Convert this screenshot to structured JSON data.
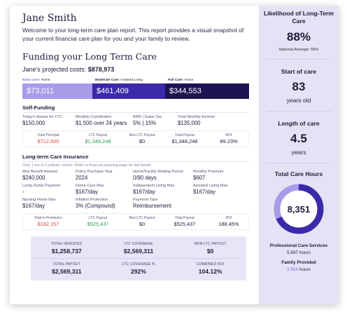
{
  "header": {
    "name": "Jane Smith",
    "welcome": "Welcome to your long-term care plan report. This report provides a visual snapshot of your current financial care plan for you and your family to review."
  },
  "funding": {
    "title": "Funding your Long Term Care",
    "projected_label": "Jane's projected costs:",
    "projected_value": "$878,973",
    "stages": [
      {
        "label": "Early Care:",
        "type": "Home",
        "value": "$73,011",
        "color": "#a89be8"
      },
      {
        "label": "Moderate Care:",
        "type": "Assisted Living",
        "value": "$461,409",
        "color": "#3a2aa8"
      },
      {
        "label": "Full Care:",
        "type": "Home",
        "value": "$344,553",
        "color": "#1b1450"
      }
    ]
  },
  "self_funding": {
    "title": "Self-Funding",
    "fields": [
      {
        "label": "Today's Assets for LTC",
        "value": "$150,000"
      },
      {
        "label": "Monthly Contribution",
        "value": "$1,500 over 24 years"
      },
      {
        "label": "ARR | Gains Tax",
        "value": "5% | 15%"
      },
      {
        "label": "Total Monthly Income",
        "value": "$135,000"
      }
    ],
    "summary": [
      {
        "label": "Total Principal",
        "value": "$712,500",
        "tone": "red"
      },
      {
        "label": "LTC Payout",
        "value": "$1,348,248",
        "tone": "green"
      },
      {
        "label": "Non-LTC Payout",
        "value": "$0",
        "tone": ""
      },
      {
        "label": "Total Payout",
        "value": "$1,348,248",
        "tone": ""
      },
      {
        "label": "ROI",
        "value": "89.23%",
        "tone": ""
      }
    ]
  },
  "insurance": {
    "title": "Long-term Care Insurance",
    "subtitle": "Only 1 out of 3 policies shown. Refer to financial planning page for full details.",
    "fields": [
      {
        "label": "Max Benefit Amount",
        "value": "$240,000"
      },
      {
        "label": "Policy Purchase Year",
        "value": "2024"
      },
      {
        "label": "Home/Facility Waiting Period",
        "value": "0/90 days"
      },
      {
        "label": "Monthly Premium",
        "value": "$607"
      },
      {
        "label": "Lump-Sump Payment",
        "value": "-"
      },
      {
        "label": "Home Care Max",
        "value": "$167/day"
      },
      {
        "label": "Independent Living Max",
        "value": "$167/day"
      },
      {
        "label": "Assisted Living Max",
        "value": "$167/day"
      },
      {
        "label": "Nursing Home Max",
        "value": "$167/day"
      },
      {
        "label": "Inflation Protection",
        "value": "3% (Compound)"
      },
      {
        "label": "Payment Type",
        "value": "Reimbursement"
      }
    ],
    "summary": [
      {
        "label": "Paid in Premiums",
        "value": "$182,157",
        "tone": "red"
      },
      {
        "label": "LTC Payout",
        "value": "$525,437",
        "tone": "green"
      },
      {
        "label": "Non-LTC Payout",
        "value": "$0",
        "tone": ""
      },
      {
        "label": "Total Payout",
        "value": "$525,437",
        "tone": ""
      },
      {
        "label": "ROI",
        "value": "188.45%",
        "tone": ""
      }
    ]
  },
  "totals": [
    {
      "label": "TOTAL INVESTED",
      "value": "$1,258,737"
    },
    {
      "label": "LTC COVERAGE",
      "value": "$2,569,311"
    },
    {
      "label": "NON-LTC PAYOUT",
      "value": "$0"
    },
    {
      "label": "TOTAL PAYOUT",
      "value": "$2,569,311"
    },
    {
      "label": "LTC COVERAGE %",
      "value": "292%"
    },
    {
      "label": "COMBINED ROI",
      "value": "104.12%"
    }
  ],
  "sidebar": {
    "likelihood_title": "Likelihood of Long-Term Care",
    "likelihood_value": "88%",
    "national_average": "National Average: 56%",
    "start_title": "Start of care",
    "start_value": "83",
    "start_unit": "years old",
    "length_title": "Length of care",
    "length_value": "4.5",
    "length_unit": "years",
    "hours_title": "Total Care Hours",
    "hours_value": "8,351",
    "professional_fraction": 0.682,
    "ring_colors": {
      "professional": "#3a2aa8",
      "family": "#a89be8"
    },
    "professional_label": "Professional Care Services",
    "professional_hours": "5,697",
    "family_label": "Family Provided",
    "family_hours": "2,654",
    "hours_unit": "hours"
  }
}
